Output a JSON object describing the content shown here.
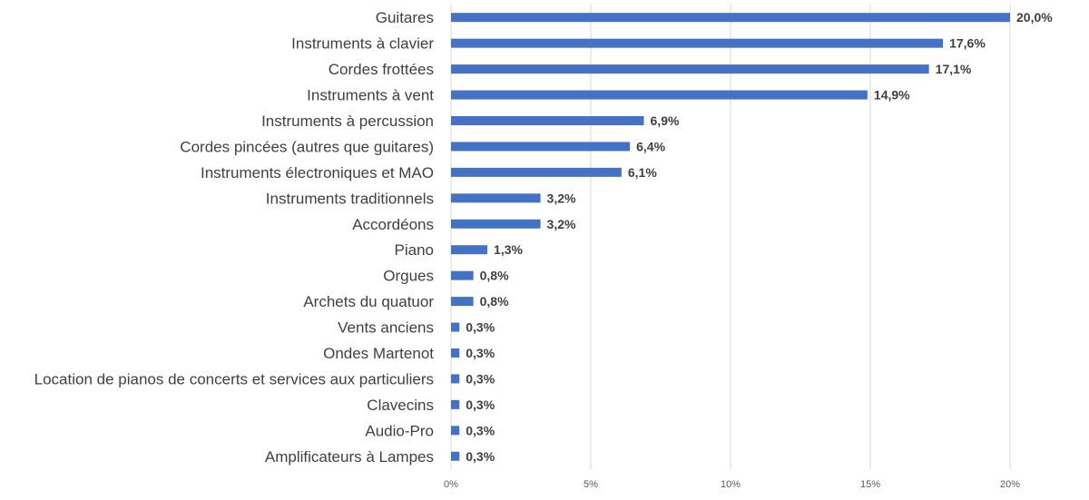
{
  "chart_data": {
    "type": "bar",
    "orientation": "horizontal",
    "title": "",
    "xlabel": "",
    "ylabel": "",
    "xlim": [
      0,
      20
    ],
    "grid": true,
    "legend": "none",
    "bar_color": "#4472c4",
    "categories": [
      "Guitares",
      "Instruments à clavier",
      "Cordes frottées",
      "Instruments à vent",
      "Instruments à percussion",
      "Cordes pincées (autres que guitares)",
      "Instruments électroniques et MAO",
      "Instruments traditionnels",
      "Accordéons",
      "Piano",
      "Orgues",
      "Archets du quatuor",
      "Vents anciens",
      "Ondes Martenot",
      "Location de pianos de concerts et services aux particuliers",
      "Clavecins",
      "Audio-Pro",
      "Amplificateurs à Lampes"
    ],
    "values": [
      20.0,
      17.6,
      17.1,
      14.9,
      6.9,
      6.4,
      6.1,
      3.2,
      3.2,
      1.3,
      0.8,
      0.8,
      0.3,
      0.3,
      0.3,
      0.3,
      0.3,
      0.3
    ],
    "data_labels": [
      "20,0%",
      "17,6%",
      "17,1%",
      "14,9%",
      "6,9%",
      "6,4%",
      "6,1%",
      "3,2%",
      "3,2%",
      "1,3%",
      "0,8%",
      "0,8%",
      "0,3%",
      "0,3%",
      "0,3%",
      "0,3%",
      "0,3%",
      "0,3%"
    ],
    "ticks": [
      0,
      5,
      10,
      15,
      20
    ],
    "tick_labels": [
      "0%",
      "5%",
      "10%",
      "15%",
      "20%"
    ]
  }
}
